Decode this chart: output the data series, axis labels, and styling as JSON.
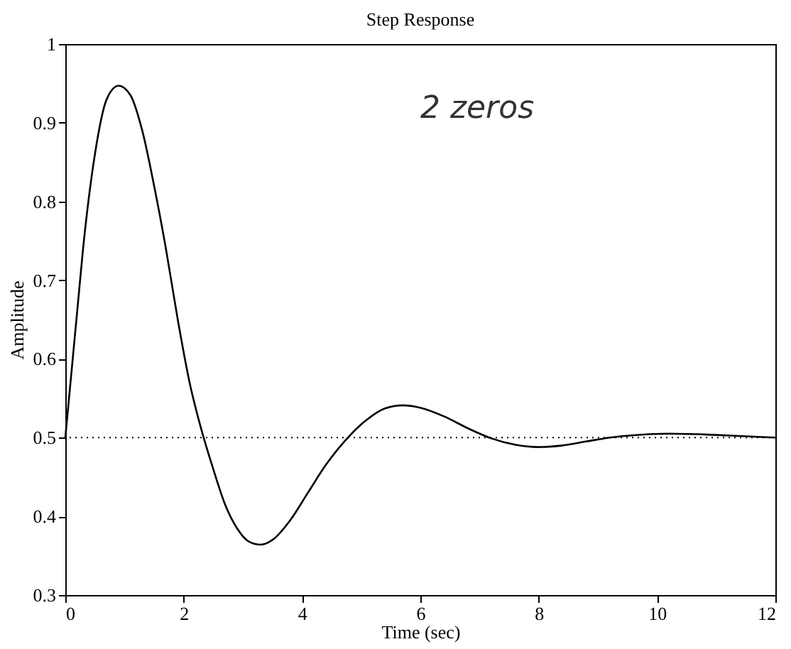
{
  "chart_data": {
    "type": "line",
    "title": "Step Response",
    "xlabel": "Time (sec)",
    "ylabel": "Amplitude",
    "x": [
      0,
      0.1,
      0.2,
      0.3,
      0.5,
      0.7,
      0.9,
      1.1,
      1.3,
      1.5,
      1.7,
      1.9,
      2.1,
      2.3,
      2.5,
      2.7,
      2.9,
      3.1,
      3.3,
      3.5,
      3.8,
      4.1,
      4.4,
      4.8,
      5.1,
      5.4,
      5.7,
      6.0,
      6.4,
      6.8,
      7.2,
      7.6,
      8.0,
      8.4,
      8.8,
      9.2,
      9.6,
      10.2,
      10.8,
      11.4,
      12
    ],
    "series": [
      {
        "color": "#000000",
        "values": [
          0.5,
          0.58,
          0.66,
          0.74,
          0.86,
          0.93,
          0.947,
          0.935,
          0.89,
          0.82,
          0.74,
          0.65,
          0.57,
          0.51,
          0.46,
          0.415,
          0.385,
          0.368,
          0.364,
          0.37,
          0.395,
          0.43,
          0.465,
          0.502,
          0.523,
          0.537,
          0.541,
          0.538,
          0.527,
          0.512,
          0.499,
          0.491,
          0.488,
          0.49,
          0.495,
          0.5,
          0.503,
          0.505,
          0.504,
          0.502,
          0.5
        ]
      }
    ],
    "xlim": [
      0,
      12
    ],
    "xticks": [
      0,
      2,
      4,
      6,
      8,
      10,
      12
    ],
    "ylim": [
      0.3,
      1
    ],
    "yticks": [
      0.3,
      0.4,
      0.5,
      0.6,
      0.7,
      0.8,
      0.9,
      1
    ],
    "ref_lines": [
      {
        "axis": "y",
        "value": 0.5,
        "color": "#000000",
        "line_style": "dotted"
      }
    ],
    "annotations": [
      "2 zeros"
    ],
    "grid": false,
    "line_style": "solid",
    "marker": "none"
  }
}
